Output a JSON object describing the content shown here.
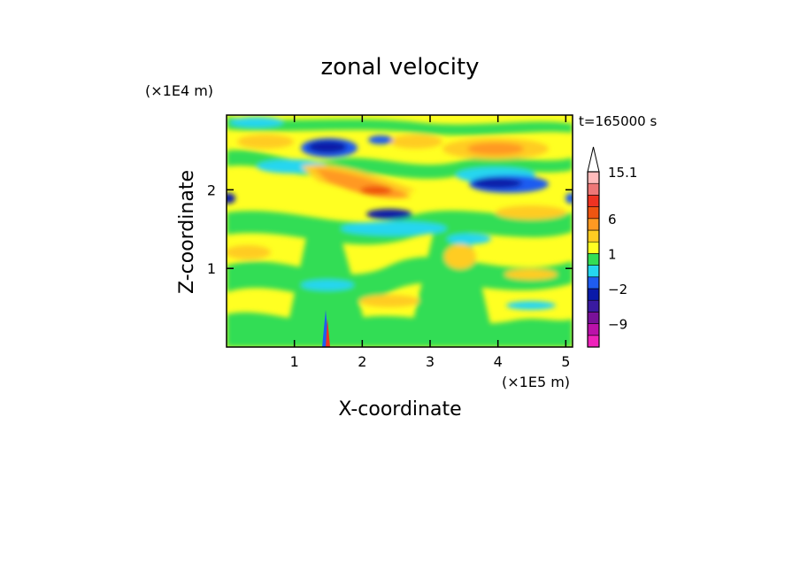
{
  "chart_data": {
    "type": "heatmap",
    "title": "zonal velocity",
    "xlabel": "X-coordinate",
    "ylabel": "Z-coordinate",
    "x_scale_label": "(×1E5 m)",
    "y_scale_label": "(×1E4 m)",
    "time_label": "t=165000 s",
    "xlim": [
      0,
      5.1
    ],
    "ylim": [
      0,
      2.95
    ],
    "x_ticks": [
      1,
      2,
      3,
      4,
      5
    ],
    "y_ticks": [
      1,
      2
    ],
    "colorbar": {
      "levels": [
        -15,
        -12,
        -9,
        -6,
        -4,
        -2,
        -1,
        0,
        1,
        2,
        4,
        6,
        9,
        12,
        15.1
      ],
      "labels": [
        {
          "value": 15.1,
          "text": "15.1"
        },
        {
          "value": 6,
          "text": "6"
        },
        {
          "value": 1,
          "text": "1"
        },
        {
          "value": -2,
          "text": "−2"
        },
        {
          "value": -9,
          "text": "−9"
        }
      ],
      "colors": [
        "#ee22bb",
        "#bb11aa",
        "#7a1199",
        "#3a1aa0",
        "#0a1aa8",
        "#1f5cf0",
        "#25d6f0",
        "#33dd55",
        "#ffff22",
        "#ffcc22",
        "#ff9922",
        "#ee5511",
        "#ee3322",
        "#ee7777",
        "#ffbbbb"
      ],
      "extend_max": true
    },
    "features": [
      {
        "x": 1.55,
        "z": 2.6,
        "u": -8
      },
      {
        "x": 4.05,
        "z": 2.1,
        "u": -7
      },
      {
        "x": 2.25,
        "z": 1.75,
        "u": -5
      },
      {
        "x": 2.1,
        "z": 2.1,
        "u": 5
      },
      {
        "x": 2.5,
        "z": 2.0,
        "u": 6
      },
      {
        "x": 4.1,
        "z": 2.6,
        "u": 3
      },
      {
        "x": 3.3,
        "z": 1.1,
        "u": 2
      }
    ]
  }
}
